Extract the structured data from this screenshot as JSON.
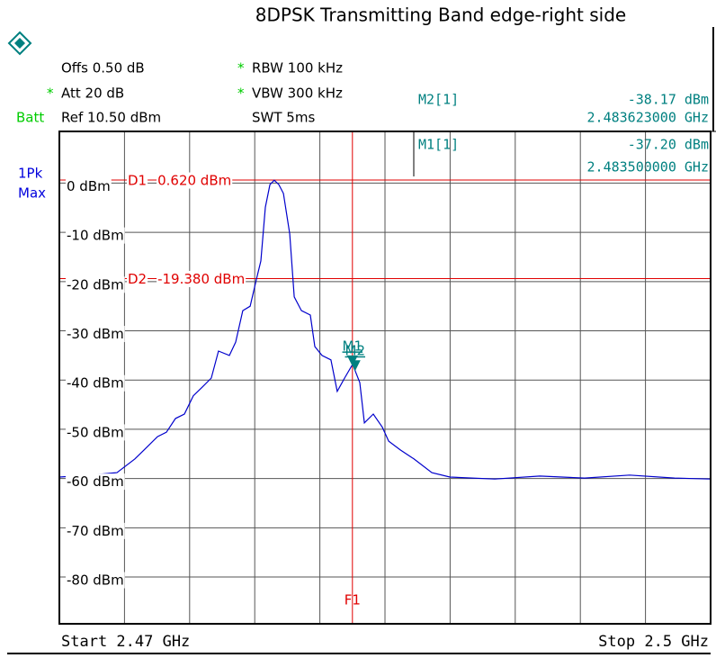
{
  "chart_data": {
    "type": "line",
    "title": "8DPSK Transmitting Band edge-right side",
    "info": [
      {
        "text": "Offs 0.50 dB"
      },
      {
        "star": "*",
        "text": "RBW 100 kHz"
      },
      {
        "star": "*",
        "text": "Att 20 dB"
      },
      {
        "star": "*",
        "text": "VBW 300 kHz"
      },
      {
        "text": "Ref 10.50 dBm"
      },
      {
        "text": "SWT 5ms"
      }
    ],
    "status": "Batt",
    "detector": [
      "1Pk",
      "Max"
    ],
    "start_label": "Start 2.47 GHz",
    "stop_label": "Stop 2.5 GHz",
    "xlim": [
      2.47,
      2.5
    ],
    "ylim": [
      -89.5,
      10.5
    ],
    "yticks": [
      {
        "value": 0,
        "label": "0 dBm"
      },
      {
        "value": -10,
        "label": "-10 dBm"
      },
      {
        "value": -20,
        "label": "-20 dBm"
      },
      {
        "value": -30,
        "label": "-30 dBm"
      },
      {
        "value": -40,
        "label": "-40 dBm"
      },
      {
        "value": -50,
        "label": "-50 dBm"
      },
      {
        "value": -60,
        "label": "-60 dBm"
      },
      {
        "value": -70,
        "label": "-70 dBm"
      },
      {
        "value": -80,
        "label": "-80 dBm"
      }
    ],
    "grid": true,
    "series": [
      {
        "name": "1Pk Max",
        "color": "#0000cc",
        "x": [
          2.47,
          2.47141,
          2.47265,
          2.47348,
          2.4739,
          2.47452,
          2.47493,
          2.47535,
          2.47576,
          2.47617,
          2.47659,
          2.477,
          2.47733,
          2.47783,
          2.47812,
          2.47845,
          2.47879,
          2.47908,
          2.47928,
          2.47949,
          2.4797,
          2.4799,
          2.48011,
          2.48032,
          2.48061,
          2.48082,
          2.48115,
          2.48156,
          2.48177,
          2.4821,
          2.48251,
          2.4828,
          2.48314,
          2.48351,
          2.48384,
          2.48405,
          2.48446,
          2.48488,
          2.48517,
          2.48571,
          2.48633,
          2.48716,
          2.48799,
          2.49006,
          2.49213,
          2.4942,
          2.49627,
          2.49834,
          2.5
        ],
        "values": [
          -59.7,
          -59.3,
          -58.8,
          -56.0,
          -54.2,
          -51.5,
          -50.6,
          -47.8,
          -46.9,
          -43.2,
          -41.4,
          -39.6,
          -34.1,
          -35.0,
          -32.3,
          -25.9,
          -25.0,
          -19.5,
          -15.8,
          -4.9,
          -0.3,
          0.6,
          -0.3,
          -2.1,
          -10.3,
          -23.1,
          -25.9,
          -26.8,
          -33.2,
          -35.0,
          -35.9,
          -42.3,
          -39.6,
          -36.8,
          -40.5,
          -48.7,
          -46.9,
          -49.6,
          -52.4,
          -54.2,
          -56.0,
          -58.8,
          -59.7,
          -60.1,
          -59.5,
          -59.9,
          -59.3,
          -59.9,
          -60.1
        ]
      }
    ],
    "display_lines": [
      {
        "name": "D1",
        "value": 0.62,
        "label": "0.620 dBm",
        "color": "#e00000"
      },
      {
        "name": "D2",
        "value": -19.38,
        "label": "-19.380 dBm",
        "color": "#e00000"
      }
    ],
    "frequency_line": {
      "name": "F1",
      "x": 2.4835,
      "color": "#e00000"
    },
    "markers": [
      {
        "name": "M2[1]",
        "label": "M2",
        "x": 2.483623,
        "y": -38.17,
        "x_label": "2.483623000 GHz",
        "y_label": "-38.17 dBm",
        "color": "#008080"
      },
      {
        "name": "M1[1]",
        "label": "M1",
        "x": 2.4835,
        "y": -37.2,
        "x_label": "2.483500000 GHz",
        "y_label": "-37.20 dBm",
        "color": "#008080"
      }
    ]
  }
}
